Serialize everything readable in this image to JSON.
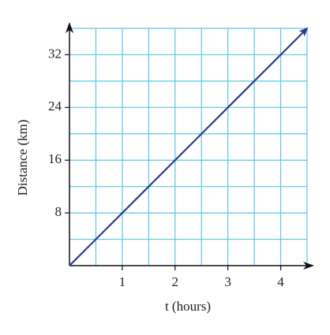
{
  "chart_data": {
    "type": "line",
    "xlabel": "t (hours)",
    "ylabel": "Distance (km)",
    "x": [
      0,
      4.5
    ],
    "values": [
      0,
      36
    ],
    "color": "#2b3a84",
    "xlim": [
      0,
      4.5
    ],
    "ylim": [
      0,
      36
    ],
    "xticks": [
      1,
      2,
      3,
      4
    ],
    "yticks": [
      8,
      16,
      24,
      32
    ],
    "xgrid": [
      0.5,
      1,
      1.5,
      2,
      2.5,
      3,
      3.5,
      4,
      4.5
    ],
    "ygrid": [
      4,
      8,
      12,
      16,
      20,
      24,
      28,
      32,
      36
    ],
    "grid_color": "#5cc6e6"
  }
}
